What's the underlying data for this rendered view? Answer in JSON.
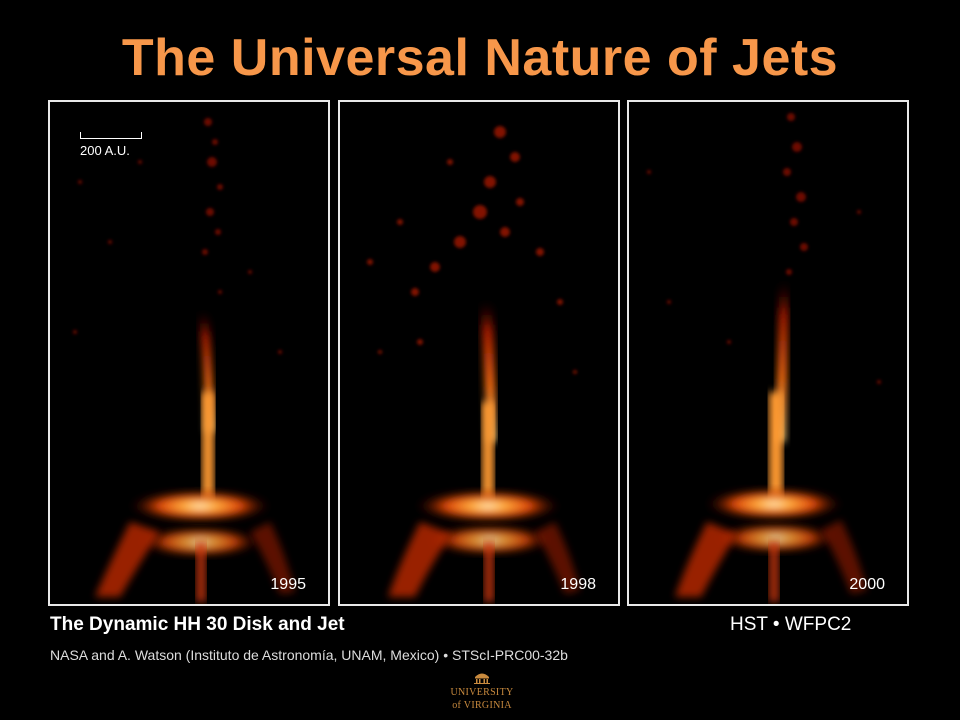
{
  "slide": {
    "title": "The Universal Nature of Jets"
  },
  "panels": [
    {
      "year": "1995",
      "scale_label": "200 A.U."
    },
    {
      "year": "1998"
    },
    {
      "year": "2000"
    }
  ],
  "caption": {
    "title": "The Dynamic HH 30 Disk and Jet",
    "credit": "NASA and A. Watson (Instituto de Astronomía, UNAM, Mexico) • STScI-PRC00-32b",
    "instrument": "HST • WFPC2"
  },
  "logo": {
    "line1": "UNIVERSITY",
    "line2": "of VIRGINIA"
  },
  "colors": {
    "title": "#f7974a",
    "jet_core": "#fff4d0",
    "jet_mid": "#ff8a1a",
    "jet_outer": "#b01800"
  }
}
